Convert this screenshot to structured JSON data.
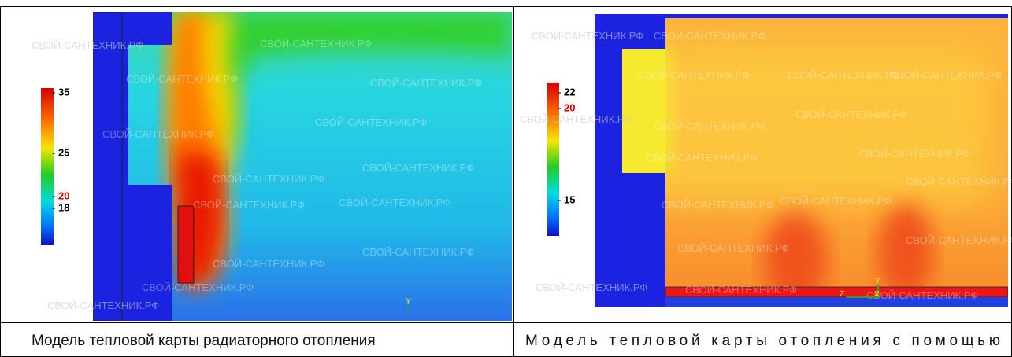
{
  "panels": [
    {
      "colorbar": {
        "ticks": [
          {
            "value": 35,
            "highlight": false
          },
          {
            "value": 25,
            "highlight": false
          },
          {
            "value": 20,
            "highlight": true
          },
          {
            "value": 18,
            "highlight": false
          }
        ]
      },
      "axis_labels": [
        "Y"
      ],
      "caption": "Модель тепловой карты радиаторного отопления"
    },
    {
      "colorbar": {
        "ticks": [
          {
            "value": 22,
            "highlight": false
          },
          {
            "value": 20,
            "highlight": true
          },
          {
            "value": 15,
            "highlight": false
          }
        ]
      },
      "axis_labels": [
        "Y",
        "Z",
        "X"
      ],
      "caption": "Модель тепловой карты отопления с помощью"
    }
  ],
  "watermark": "СВОЙ-САНТЕХНИК.РФ"
}
